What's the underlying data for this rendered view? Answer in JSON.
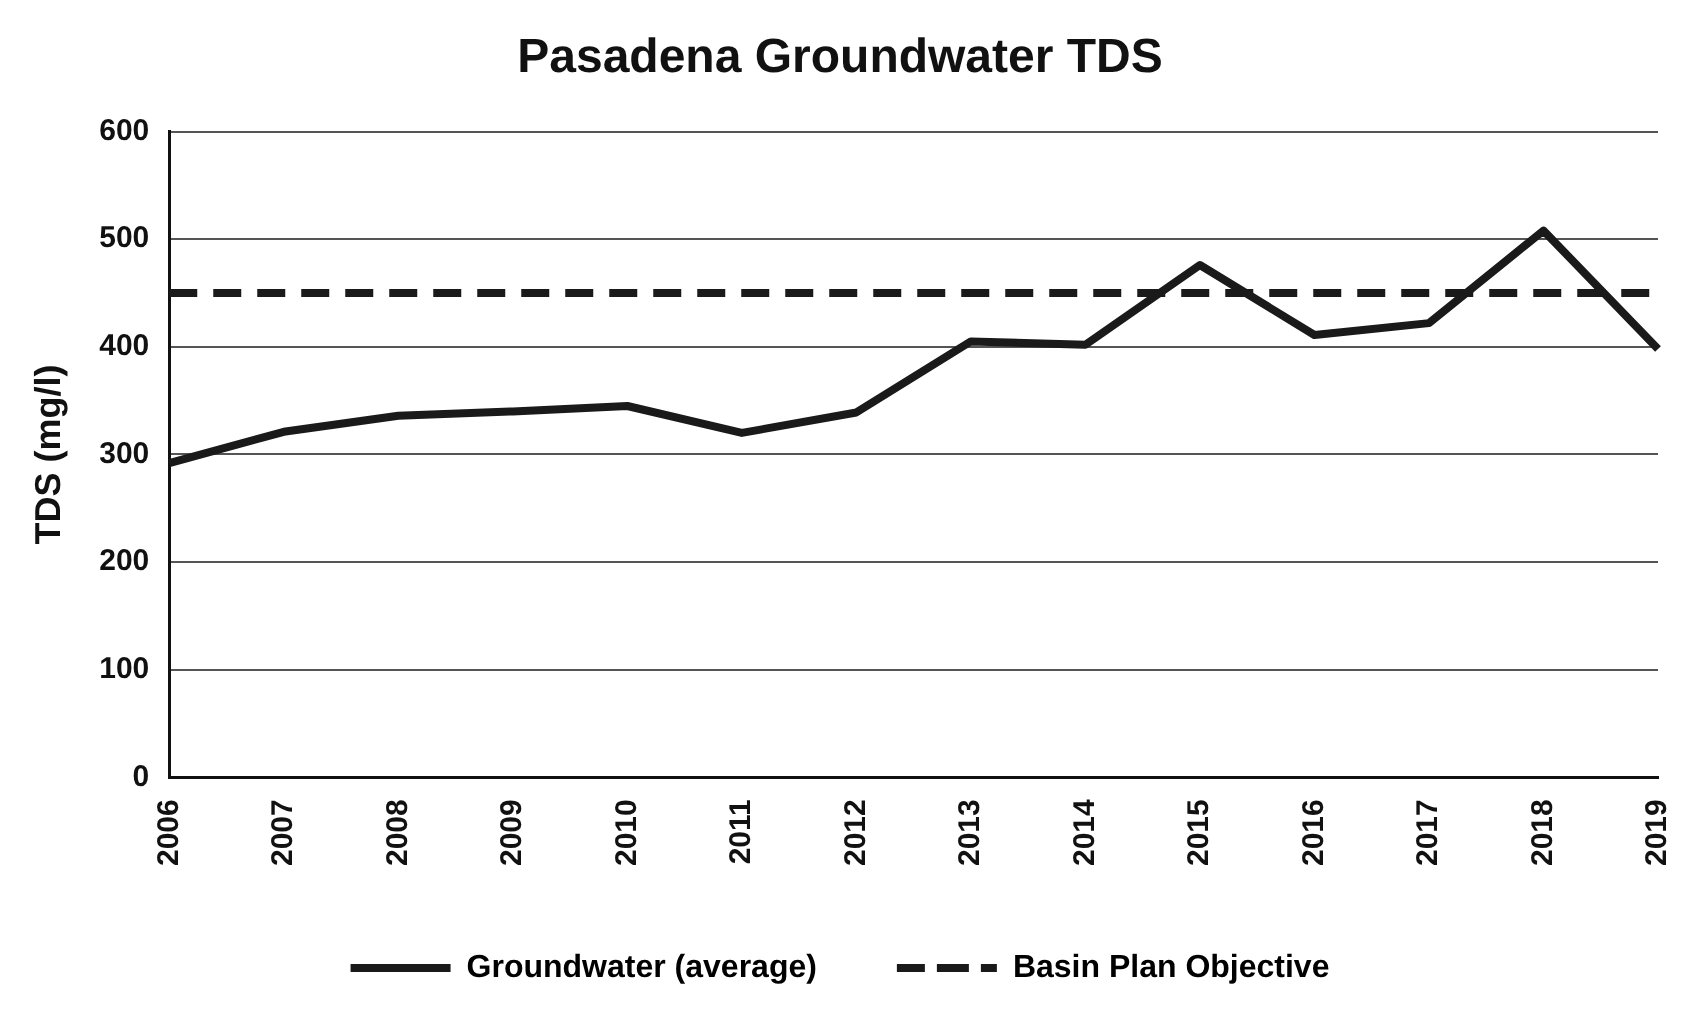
{
  "chart_data": {
    "type": "line",
    "title": "Pasadena Groundwater TDS",
    "ylabel": "TDS (mg/l)",
    "categories": [
      "2006",
      "2007",
      "2008",
      "2009",
      "2010",
      "2011",
      "2012",
      "2013",
      "2014",
      "2015",
      "2016",
      "2017",
      "2018",
      "2019"
    ],
    "series": [
      {
        "name": "Groundwater (average)",
        "color": "#1a1a1a",
        "line_style": "solid",
        "values": [
          292,
          321,
          336,
          340,
          345,
          320,
          339,
          405,
          402,
          476,
          411,
          422,
          508,
          398
        ]
      },
      {
        "name": "Basin Plan Objective",
        "color": "#1a1a1a",
        "line_style": "dashed",
        "values": [
          450,
          450,
          450,
          450,
          450,
          450,
          450,
          450,
          450,
          450,
          450,
          450,
          450,
          450
        ]
      }
    ],
    "ylim": [
      0,
      600
    ],
    "yticks": [
      0,
      100,
      200,
      300,
      400,
      500,
      600
    ],
    "grid": "y",
    "legend": "bottom",
    "marker": "none"
  }
}
